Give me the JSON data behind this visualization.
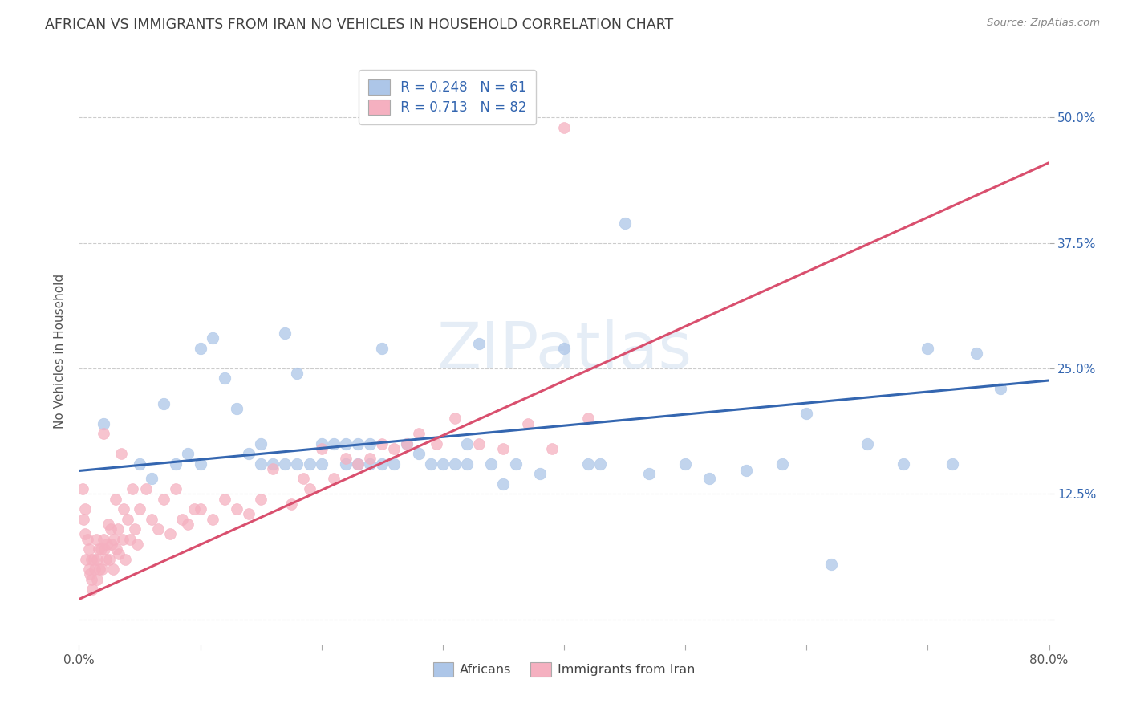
{
  "title": "AFRICAN VS IMMIGRANTS FROM IRAN NO VEHICLES IN HOUSEHOLD CORRELATION CHART",
  "source": "Source: ZipAtlas.com",
  "ylabel": "No Vehicles in Household",
  "xlim": [
    0.0,
    0.8
  ],
  "ylim": [
    -0.025,
    0.56
  ],
  "yticks": [
    0.0,
    0.125,
    0.25,
    0.375,
    0.5
  ],
  "ytick_labels": [
    "",
    "12.5%",
    "25.0%",
    "37.5%",
    "50.0%"
  ],
  "xticks": [
    0.0,
    0.1,
    0.2,
    0.3,
    0.4,
    0.5,
    0.6,
    0.7,
    0.8
  ],
  "xtick_labels": [
    "0.0%",
    "",
    "",
    "",
    "",
    "",
    "",
    "",
    "80.0%"
  ],
  "watermark": "ZIPatlas",
  "blue_R": 0.248,
  "blue_N": 61,
  "pink_R": 0.713,
  "pink_N": 82,
  "blue_color": "#adc6e8",
  "pink_color": "#f5b0c0",
  "blue_line_color": "#3466b0",
  "pink_line_color": "#d94f6e",
  "background_color": "#ffffff",
  "grid_color": "#cccccc",
  "title_color": "#404040",
  "blue_scatter_x": [
    0.02,
    0.05,
    0.06,
    0.07,
    0.08,
    0.09,
    0.1,
    0.1,
    0.11,
    0.12,
    0.13,
    0.14,
    0.15,
    0.15,
    0.16,
    0.17,
    0.17,
    0.18,
    0.18,
    0.19,
    0.2,
    0.2,
    0.21,
    0.22,
    0.22,
    0.23,
    0.23,
    0.24,
    0.24,
    0.25,
    0.25,
    0.26,
    0.27,
    0.28,
    0.29,
    0.3,
    0.31,
    0.32,
    0.32,
    0.33,
    0.34,
    0.35,
    0.36,
    0.38,
    0.4,
    0.42,
    0.43,
    0.45,
    0.47,
    0.5,
    0.52,
    0.55,
    0.58,
    0.6,
    0.62,
    0.65,
    0.68,
    0.7,
    0.72,
    0.74,
    0.76
  ],
  "blue_scatter_y": [
    0.195,
    0.155,
    0.14,
    0.215,
    0.155,
    0.165,
    0.27,
    0.155,
    0.28,
    0.24,
    0.21,
    0.165,
    0.175,
    0.155,
    0.155,
    0.285,
    0.155,
    0.245,
    0.155,
    0.155,
    0.175,
    0.155,
    0.175,
    0.155,
    0.175,
    0.175,
    0.155,
    0.175,
    0.155,
    0.27,
    0.155,
    0.155,
    0.175,
    0.165,
    0.155,
    0.155,
    0.155,
    0.155,
    0.175,
    0.275,
    0.155,
    0.135,
    0.155,
    0.145,
    0.27,
    0.155,
    0.155,
    0.395,
    0.145,
    0.155,
    0.14,
    0.148,
    0.155,
    0.205,
    0.055,
    0.175,
    0.155,
    0.27,
    0.155,
    0.265,
    0.23
  ],
  "pink_scatter_x": [
    0.003,
    0.004,
    0.005,
    0.005,
    0.006,
    0.007,
    0.008,
    0.008,
    0.009,
    0.01,
    0.01,
    0.011,
    0.012,
    0.013,
    0.014,
    0.015,
    0.015,
    0.016,
    0.017,
    0.018,
    0.019,
    0.02,
    0.02,
    0.021,
    0.022,
    0.023,
    0.024,
    0.025,
    0.026,
    0.027,
    0.028,
    0.029,
    0.03,
    0.031,
    0.032,
    0.033,
    0.035,
    0.036,
    0.037,
    0.038,
    0.04,
    0.042,
    0.044,
    0.046,
    0.048,
    0.05,
    0.055,
    0.06,
    0.065,
    0.07,
    0.075,
    0.08,
    0.085,
    0.09,
    0.095,
    0.1,
    0.11,
    0.12,
    0.13,
    0.14,
    0.15,
    0.16,
    0.175,
    0.185,
    0.19,
    0.2,
    0.21,
    0.22,
    0.23,
    0.24,
    0.25,
    0.26,
    0.27,
    0.28,
    0.295,
    0.31,
    0.33,
    0.35,
    0.37,
    0.39,
    0.4,
    0.42
  ],
  "pink_scatter_y": [
    0.13,
    0.1,
    0.085,
    0.11,
    0.06,
    0.08,
    0.05,
    0.07,
    0.045,
    0.04,
    0.06,
    0.03,
    0.06,
    0.05,
    0.08,
    0.06,
    0.04,
    0.07,
    0.05,
    0.07,
    0.05,
    0.185,
    0.08,
    0.07,
    0.06,
    0.075,
    0.095,
    0.06,
    0.09,
    0.075,
    0.05,
    0.08,
    0.12,
    0.07,
    0.09,
    0.065,
    0.165,
    0.08,
    0.11,
    0.06,
    0.1,
    0.08,
    0.13,
    0.09,
    0.075,
    0.11,
    0.13,
    0.1,
    0.09,
    0.12,
    0.085,
    0.13,
    0.1,
    0.095,
    0.11,
    0.11,
    0.1,
    0.12,
    0.11,
    0.105,
    0.12,
    0.15,
    0.115,
    0.14,
    0.13,
    0.17,
    0.14,
    0.16,
    0.155,
    0.16,
    0.175,
    0.17,
    0.175,
    0.185,
    0.175,
    0.2,
    0.175,
    0.17,
    0.195,
    0.17,
    0.49,
    0.2
  ],
  "blue_line_x": [
    0.0,
    0.8
  ],
  "blue_line_y": [
    0.148,
    0.238
  ],
  "pink_line_x": [
    0.0,
    0.8
  ],
  "pink_line_y": [
    0.02,
    0.455
  ]
}
